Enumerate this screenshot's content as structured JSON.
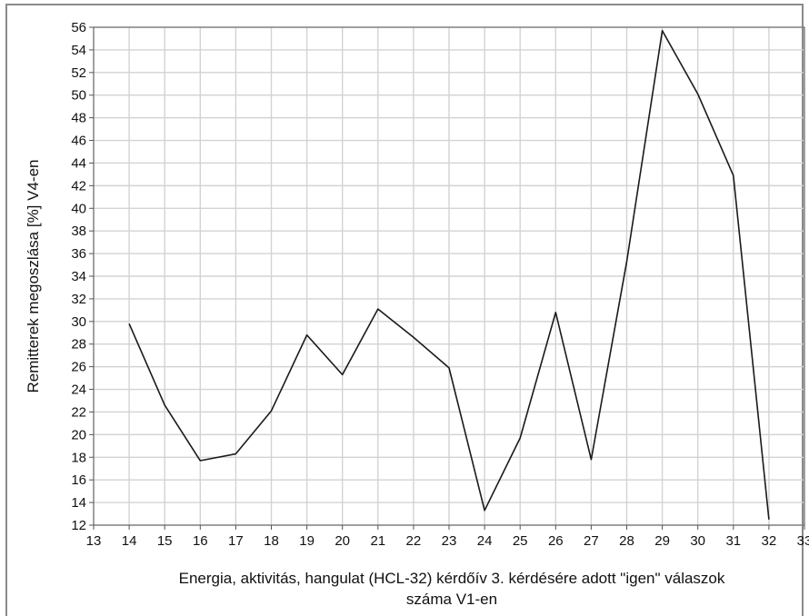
{
  "chart_data": {
    "type": "line",
    "title": "",
    "xlabel_lines": [
      "Energia, aktivitás, hangulat (HCL-32) kérdőív 3. kérdésére adott \"igen\" válaszok",
      "száma V1-en"
    ],
    "ylabel": "Remitterek megoszlása [%] V4-en",
    "xlim": [
      13,
      33
    ],
    "ylim": [
      12,
      56
    ],
    "x_ticks": [
      13,
      14,
      15,
      16,
      17,
      18,
      19,
      20,
      21,
      22,
      23,
      24,
      25,
      26,
      27,
      28,
      29,
      30,
      31,
      32,
      33
    ],
    "y_ticks": [
      12,
      14,
      16,
      18,
      20,
      22,
      24,
      26,
      28,
      30,
      32,
      34,
      36,
      38,
      40,
      42,
      44,
      46,
      48,
      50,
      52,
      54,
      56
    ],
    "grid": true,
    "x": [
      14,
      15,
      16,
      17,
      18,
      19,
      20,
      21,
      22,
      23,
      24,
      25,
      26,
      27,
      28,
      29,
      30,
      31,
      32
    ],
    "values": [
      29.8,
      22.6,
      17.7,
      18.3,
      22.1,
      28.8,
      25.3,
      31.1,
      28.6,
      25.9,
      13.3,
      19.7,
      30.8,
      17.8,
      35.3,
      55.7,
      50.1,
      42.9,
      12.5
    ],
    "colors": {
      "line": "#1a1a1a",
      "grid": "#d3d3d3",
      "axis": "#555555"
    }
  }
}
